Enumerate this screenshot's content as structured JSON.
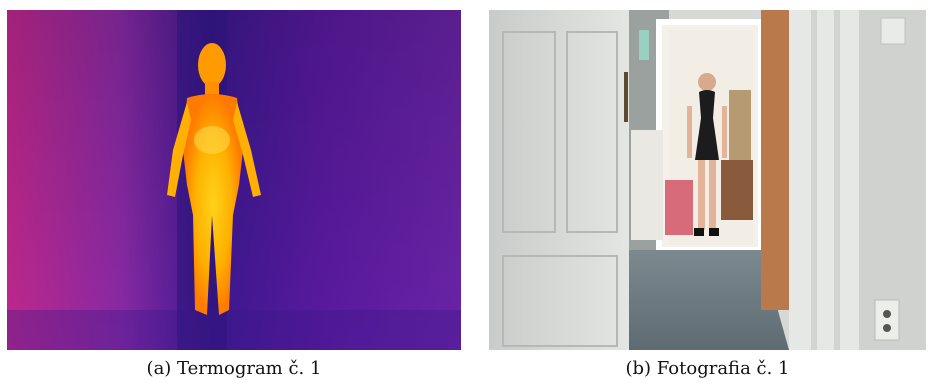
{
  "figure": {
    "panels": [
      {
        "kind": "thermogram",
        "caption": "(a) Termogram č. 1",
        "palette": {
          "cold": "#5a1aa0",
          "mid": "#e0207a",
          "warm": "#ff8a00",
          "hot": "#ffd21a"
        }
      },
      {
        "kind": "photograph",
        "caption": "(b) Fotografia č. 1"
      }
    ]
  }
}
